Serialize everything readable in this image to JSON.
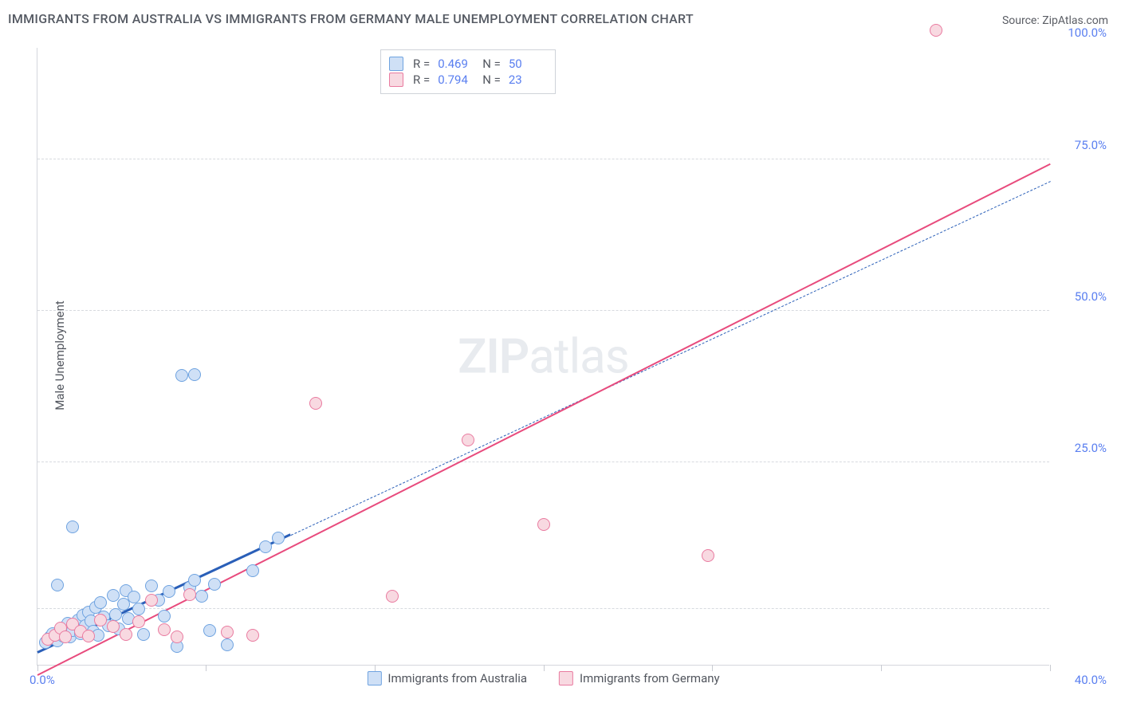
{
  "title": "IMMIGRANTS FROM AUSTRALIA VS IMMIGRANTS FROM GERMANY MALE UNEMPLOYMENT CORRELATION CHART",
  "source": "Source: ZipAtlas.com",
  "y_axis_label": "Male Unemployment",
  "watermark": {
    "bold": "ZIP",
    "light": "atlas"
  },
  "chart": {
    "type": "scatter",
    "xlim": [
      0,
      40
    ],
    "ylim": [
      0,
      110
    ],
    "x_ticks": [
      0,
      6.66,
      13.33,
      20,
      26.66,
      33.33,
      40
    ],
    "y_gridlines": [
      10,
      36,
      63,
      90
    ],
    "y_tick_labels": [
      {
        "value": 36,
        "label": "25.0%"
      },
      {
        "value": 63,
        "label": "50.0%"
      },
      {
        "value": 90,
        "label": "75.0%"
      },
      {
        "value": 110,
        "label": "100.0%"
      }
    ],
    "x_min_label": "0.0%",
    "x_max_label": "40.0%",
    "background_color": "#ffffff",
    "grid_color": "#d7dadf",
    "axis_color": "#d4d7dd",
    "marker_radius": 8,
    "marker_stroke_width": 1.5,
    "series": [
      {
        "id": "australia",
        "label": "Immigrants from Australia",
        "fill": "#cfe0f6",
        "stroke": "#6fa3e0",
        "line_color": "#2a5fb8",
        "line_dash": "5 4",
        "line_width": 1.6,
        "line_solid_until_x": 10,
        "line_solid_width": 3,
        "R": "0.469",
        "N": "50",
        "regression": {
          "x1": 0,
          "y1": 2,
          "x2": 40,
          "y2": 86
        },
        "points": [
          [
            0.3,
            4
          ],
          [
            0.5,
            5
          ],
          [
            0.6,
            5.5
          ],
          [
            0.8,
            4.2
          ],
          [
            0.9,
            6.3
          ],
          [
            1.0,
            5.1
          ],
          [
            1.1,
            6.8
          ],
          [
            1.2,
            7.4
          ],
          [
            1.3,
            5.0
          ],
          [
            1.4,
            6.1
          ],
          [
            1.5,
            7.2
          ],
          [
            1.6,
            8.0
          ],
          [
            1.7,
            5.6
          ],
          [
            1.8,
            8.8
          ],
          [
            1.9,
            6.9
          ],
          [
            2.0,
            9.4
          ],
          [
            2.1,
            7.8
          ],
          [
            2.2,
            6.0
          ],
          [
            2.3,
            10.2
          ],
          [
            2.4,
            5.3
          ],
          [
            2.5,
            11.1
          ],
          [
            2.6,
            8.5
          ],
          [
            2.8,
            7.0
          ],
          [
            3.0,
            12.3
          ],
          [
            3.1,
            9.0
          ],
          [
            3.2,
            6.4
          ],
          [
            3.4,
            10.8
          ],
          [
            3.5,
            13.2
          ],
          [
            3.6,
            8.2
          ],
          [
            3.8,
            12.0
          ],
          [
            4.0,
            10.0
          ],
          [
            4.2,
            5.4
          ],
          [
            4.5,
            14.0
          ],
          [
            4.8,
            11.5
          ],
          [
            5.0,
            8.6
          ],
          [
            5.2,
            13.0
          ],
          [
            5.5,
            3.2
          ],
          [
            6.0,
            13.8
          ],
          [
            6.2,
            15.0
          ],
          [
            6.5,
            12.2
          ],
          [
            6.8,
            6.1
          ],
          [
            7.0,
            14.4
          ],
          [
            7.5,
            3.5
          ],
          [
            8.5,
            16.8
          ],
          [
            9.0,
            21.0
          ],
          [
            9.5,
            22.5
          ],
          [
            5.7,
            51.5
          ],
          [
            6.2,
            51.6
          ],
          [
            1.4,
            24.5
          ],
          [
            0.8,
            14.2
          ]
        ]
      },
      {
        "id": "germany",
        "label": "Immigrants from Germany",
        "fill": "#f8d9e1",
        "stroke": "#e97ba0",
        "line_color": "#e84b7d",
        "line_dash": "none",
        "line_width": 2,
        "R": "0.794",
        "N": "23",
        "regression": {
          "x1": 0,
          "y1": -2,
          "x2": 40,
          "y2": 89
        },
        "points": [
          [
            0.4,
            4.6
          ],
          [
            0.7,
            5.3
          ],
          [
            0.9,
            6.5
          ],
          [
            1.1,
            5.0
          ],
          [
            1.4,
            7.2
          ],
          [
            1.7,
            6.0
          ],
          [
            2.0,
            5.1
          ],
          [
            2.5,
            8.0
          ],
          [
            3.0,
            6.8
          ],
          [
            3.5,
            5.4
          ],
          [
            4.0,
            7.6
          ],
          [
            4.5,
            11.5
          ],
          [
            5.0,
            6.2
          ],
          [
            5.5,
            5.0
          ],
          [
            6.0,
            12.5
          ],
          [
            7.5,
            5.8
          ],
          [
            8.5,
            5.2
          ],
          [
            11.0,
            46.5
          ],
          [
            14.0,
            12.2
          ],
          [
            17.0,
            40.0
          ],
          [
            20.0,
            25.0
          ],
          [
            26.5,
            19.5
          ],
          [
            35.5,
            113.0
          ]
        ]
      }
    ]
  },
  "legend_box": {
    "rows": [
      {
        "swatch_fill": "#cfe0f6",
        "swatch_stroke": "#6fa3e0",
        "R": "0.469",
        "N": "50"
      },
      {
        "swatch_fill": "#f8d9e1",
        "swatch_stroke": "#e97ba0",
        "R": "0.794",
        "N": "23"
      }
    ]
  },
  "bottom_legend": [
    {
      "swatch_fill": "#cfe0f6",
      "swatch_stroke": "#6fa3e0",
      "label": "Immigrants from Australia"
    },
    {
      "swatch_fill": "#f8d9e1",
      "swatch_stroke": "#e97ba0",
      "label": "Immigrants from Germany"
    }
  ]
}
